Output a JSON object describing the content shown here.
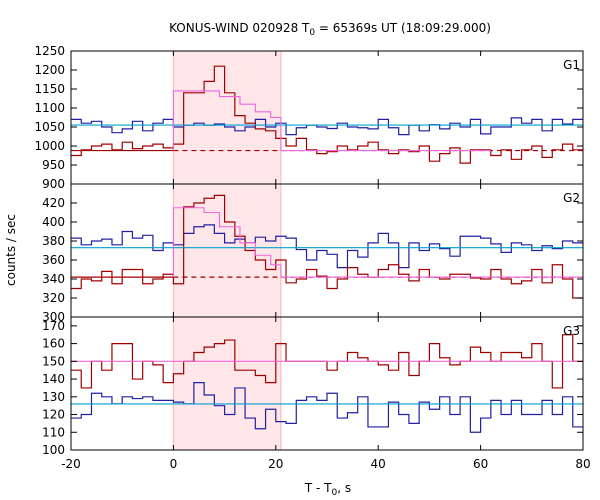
{
  "title": {
    "prefix": "KONUS-WIND 020928 T",
    "sub": "0",
    "suffix": " = 65369s UT (18:09:29.000)"
  },
  "xlabel": {
    "prefix": "T - T",
    "sub": "0",
    "suffix": ", s"
  },
  "ylabel": "counts / sec",
  "colors": {
    "curve_a": "#a00000",
    "curve_b": "#2020a0",
    "bg_a": "#dd00cc",
    "bg_b": "#00a0d0",
    "model": "#ee66dd",
    "shade": "#ffe6e8",
    "shade_edge": "#ffb0b8"
  },
  "chart_data": {
    "type": "line",
    "x_ticks": [
      -20,
      0,
      20,
      40,
      60,
      80
    ],
    "xlim": [
      -20,
      80
    ],
    "shaded_interval": [
      0,
      21
    ],
    "bin_edges": [
      -20,
      -18,
      -16,
      -14,
      -12,
      -10,
      -8,
      -6,
      -4,
      -2,
      0,
      2,
      4,
      6,
      8,
      10,
      12,
      14,
      16,
      18,
      20,
      22,
      24,
      26,
      28,
      30,
      32,
      34,
      36,
      38,
      40,
      42,
      44,
      46,
      48,
      50,
      52,
      54,
      56,
      58,
      60,
      62,
      64,
      66,
      68,
      70,
      72,
      74,
      76,
      78,
      80
    ],
    "panels": [
      {
        "label": "G1",
        "ylim": [
          900,
          1250
        ],
        "y_ticks": [
          900,
          950,
          1000,
          1050,
          1100,
          1150,
          1200,
          1250
        ],
        "series": [
          {
            "color_key": "curve_b",
            "values": [
              1070,
              1060,
              1065,
              1050,
              1035,
              1045,
              1065,
              1040,
              1060,
              1070,
              1050,
              1055,
              1060,
              1055,
              1058,
              1050,
              1040,
              1050,
              1070,
              1050,
              1060,
              1030,
              1048,
              1055,
              1050,
              1046,
              1060,
              1050,
              1048,
              1045,
              1070,
              1048,
              1030,
              1055,
              1040,
              1056,
              1045,
              1060,
              1050,
              1070,
              1032,
              1050,
              1050,
              1074,
              1060,
              1070,
              1040,
              1070,
              1058,
              1070
            ]
          },
          {
            "color_key": "curve_a",
            "values": [
              975,
              990,
              1000,
              1005,
              990,
              1010,
              993,
              1000,
              1005,
              995,
              1005,
              1140,
              1140,
              1170,
              1210,
              1140,
              1080,
              1060,
              1045,
              1040,
              1020,
              1000,
              1020,
              990,
              980,
              985,
              1000,
              990,
              1000,
              1010,
              990,
              980,
              990,
              985,
              1000,
              960,
              980,
              995,
              955,
              990,
              990,
              975,
              990,
              965,
              990,
              1000,
              970,
              990,
              1005,
              990
            ]
          },
          {
            "kind": "hline",
            "color_key": "bg_b",
            "value": 1055
          },
          {
            "kind": "hline",
            "color_key": "curve_a",
            "value": 988,
            "dashed_from": 0,
            "dashed_to": 21
          },
          {
            "kind": "hline",
            "color_key": "model",
            "value": 988,
            "from": 21,
            "to": 62
          },
          {
            "kind": "step",
            "color_key": "model",
            "edges": [
              0,
              3,
              6,
              9,
              13,
              16,
              19,
              21
            ],
            "values": [
              1145,
              1145,
              1145,
              1130,
              1110,
              1090,
              1075
            ],
            "baseline": 988
          }
        ]
      },
      {
        "label": "G2",
        "ylim": [
          300,
          440
        ],
        "y_ticks": [
          300,
          320,
          340,
          360,
          380,
          400,
          420
        ],
        "series": [
          {
            "color_key": "curve_b",
            "values": [
              383,
              376,
              380,
              382,
              376,
              390,
              383,
              386,
              370,
              378,
              376,
              388,
              395,
              397,
              388,
              378,
              382,
              378,
              384,
              380,
              385,
              383,
              371,
              360,
              370,
              366,
              352,
              370,
              363,
              378,
              388,
              378,
              352,
              378,
              370,
              377,
              372,
              364,
              385,
              385,
              383,
              377,
              368,
              378,
              376,
              370,
              375,
              372,
              380,
              378
            ]
          },
          {
            "color_key": "curve_a",
            "values": [
              330,
              340,
              338,
              348,
              335,
              350,
              350,
              335,
              340,
              345,
              335,
              416,
              420,
              425,
              428,
              400,
              385,
              370,
              360,
              350,
              360,
              336,
              340,
              350,
              343,
              330,
              340,
              352,
              345,
              342,
              350,
              355,
              345,
              338,
              350,
              342,
              340,
              345,
              345,
              341,
              340,
              350,
              340,
              335,
              338,
              350,
              336,
              355,
              340,
              320
            ]
          },
          {
            "kind": "hline",
            "color_key": "bg_b",
            "value": 373
          },
          {
            "kind": "hline",
            "color_key": "curve_a",
            "value": 342,
            "dashed_from": 0,
            "dashed_to": 21
          },
          {
            "kind": "hline",
            "color_key": "model",
            "value": 342,
            "from": 21,
            "to": 80
          },
          {
            "kind": "step",
            "color_key": "model",
            "edges": [
              0,
              4,
              6,
              9,
              13,
              16,
              19,
              21
            ],
            "values": [
              415,
              415,
              410,
              395,
              378,
              365,
              355
            ],
            "baseline": 342
          }
        ]
      },
      {
        "label": "G3",
        "ylim": [
          100,
          175
        ],
        "y_ticks": [
          100,
          110,
          120,
          130,
          140,
          150,
          160,
          170
        ],
        "series": [
          {
            "color_key": "curve_b",
            "values": [
              118,
              120,
              132,
              130,
              126,
              130,
              129,
              130,
              128,
              128,
              127,
              126,
              138,
              131,
              125,
              120,
              135,
              118,
              112,
              123,
              116,
              115,
              128,
              130,
              128,
              132,
              118,
              121,
              130,
              113,
              113,
              127,
              120,
              115,
              127,
              123,
              130,
              120,
              130,
              110,
              118,
              128,
              120,
              128,
              120,
              120,
              128,
              120,
              130,
              113
            ]
          },
          {
            "color_key": "curve_a",
            "values": [
              145,
              135,
              150,
              145,
              160,
              160,
              140,
              150,
              148,
              138,
              143,
              150,
              155,
              158,
              160,
              162,
              145,
              145,
              142,
              138,
              160,
              150,
              150,
              150,
              150,
              145,
              150,
              155,
              152,
              150,
              148,
              145,
              155,
              142,
              150,
              160,
              152,
              148,
              150,
              158,
              155,
              150,
              155,
              155,
              152,
              160,
              150,
              135,
              165,
              150
            ]
          },
          {
            "kind": "hline",
            "color_key": "bg_b",
            "value": 126
          },
          {
            "kind": "hline",
            "color_key": "model",
            "value": 150
          }
        ]
      }
    ]
  }
}
